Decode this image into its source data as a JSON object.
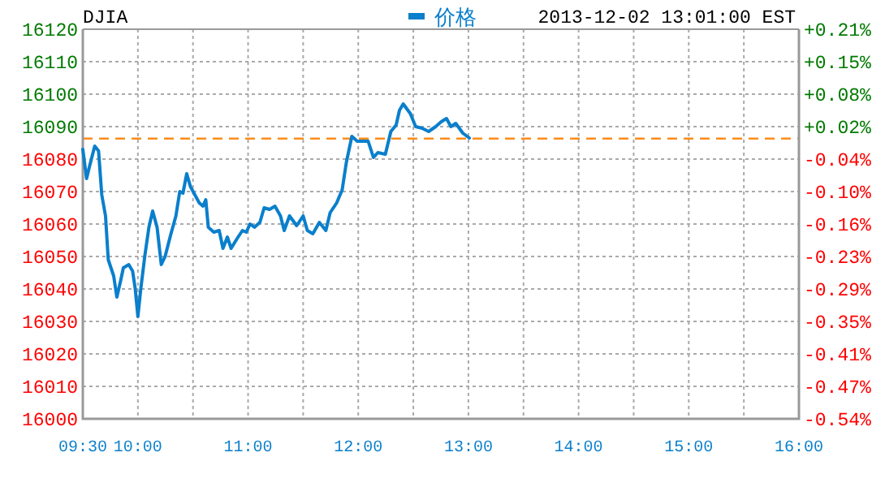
{
  "chart_data": {
    "type": "line",
    "title": "DJIA",
    "subtitle": "2013-12-02 13:01:00 EST",
    "xlim": [
      9.5,
      16
    ],
    "xticks": [
      {
        "value": 9.5,
        "label": "09:30"
      },
      {
        "value": 10,
        "label": "10:00"
      },
      {
        "value": 10.5,
        "label": null
      },
      {
        "value": 11,
        "label": "11:00"
      },
      {
        "value": 11.5,
        "label": null
      },
      {
        "value": 12,
        "label": "12:00"
      },
      {
        "value": 12.5,
        "label": null
      },
      {
        "value": 13,
        "label": "13:00"
      },
      {
        "value": 13.5,
        "label": null
      },
      {
        "value": 14,
        "label": "14:00"
      },
      {
        "value": 14.5,
        "label": null
      },
      {
        "value": 15,
        "label": "15:00"
      },
      {
        "value": 15.5,
        "label": null
      },
      {
        "value": 16,
        "label": "16:00"
      }
    ],
    "ylim": [
      16000,
      16120
    ],
    "yticks": [
      16000,
      16010,
      16020,
      16030,
      16040,
      16050,
      16060,
      16070,
      16080,
      16090,
      16100,
      16110,
      16120
    ],
    "y2lim": [
      -0.536,
      0.209
    ],
    "y2ticks": [
      {
        "value": -0.536,
        "label": "-0.54%"
      },
      {
        "value": -0.474,
        "label": "-0.47%"
      },
      {
        "value": -0.412,
        "label": "-0.41%"
      },
      {
        "value": -0.35,
        "label": "-0.35%"
      },
      {
        "value": -0.288,
        "label": "-0.29%"
      },
      {
        "value": -0.226,
        "label": "-0.23%"
      },
      {
        "value": -0.164,
        "label": "-0.16%"
      },
      {
        "value": -0.101,
        "label": "-0.10%"
      },
      {
        "value": -0.039,
        "label": "-0.04%"
      },
      {
        "value": 0.023,
        "label": "+0.02%"
      },
      {
        "value": 0.085,
        "label": "+0.08%"
      },
      {
        "value": 0.147,
        "label": "+0.15%"
      },
      {
        "value": 0.209,
        "label": "+0.21%"
      }
    ],
    "grid": true,
    "legend": "top",
    "ref_lines": [
      {
        "axis": "y",
        "value": 16086.3,
        "color": "#ff8c1a",
        "line_style": "dashed"
      }
    ],
    "series": [
      {
        "name": "价格",
        "color": "#0a7fcc",
        "x": [
          9.5,
          9.534,
          9.559,
          9.608,
          9.643,
          9.672,
          9.706,
          9.731,
          9.78,
          9.809,
          9.843,
          9.868,
          9.917,
          9.952,
          9.976,
          10.0,
          10.026,
          10.064,
          10.1,
          10.134,
          10.174,
          10.212,
          10.247,
          10.296,
          10.345,
          10.38,
          10.409,
          10.443,
          10.477,
          10.517,
          10.557,
          10.591,
          10.616,
          10.639,
          10.689,
          10.738,
          10.772,
          10.812,
          10.846,
          10.9,
          10.949,
          10.984,
          11.018,
          11.058,
          11.107,
          11.146,
          11.195,
          11.244,
          11.294,
          11.328,
          11.376,
          11.441,
          11.5,
          11.538,
          11.588,
          11.647,
          11.706,
          11.745,
          11.804,
          11.854,
          11.892,
          11.942,
          11.991,
          12.09,
          12.138,
          12.178,
          12.246,
          12.296,
          12.344,
          12.374,
          12.408,
          12.473,
          12.521,
          12.58,
          12.639,
          12.703,
          12.753,
          12.801,
          12.841,
          12.885,
          12.949,
          13.008
        ],
        "values": [
          16083,
          16074,
          16077.5,
          16084,
          16082.5,
          16069,
          16062.5,
          16049,
          16044,
          16037.5,
          16042.5,
          16046.5,
          16047.5,
          16045.5,
          16040,
          16031.5,
          16040,
          16050.5,
          16059,
          16064,
          16059,
          16047.5,
          16050,
          16056.5,
          16062.5,
          16070,
          16069.5,
          16075.5,
          16071.5,
          16069,
          16066.5,
          16065.5,
          16067.5,
          16059,
          16057.5,
          16058,
          16052.5,
          16056,
          16052.5,
          16055.5,
          16058,
          16057.5,
          16060,
          16059,
          16060.5,
          16065,
          16064.5,
          16065.5,
          16062.5,
          16058,
          16062.5,
          16059.5,
          16062.5,
          16058,
          16057,
          16060.5,
          16058,
          16063.5,
          16066.5,
          16070.5,
          16079,
          16087,
          16085.5,
          16085.5,
          16080.5,
          16082,
          16081.5,
          16088.5,
          16090.5,
          16095,
          16097,
          16094,
          16090,
          16089.5,
          16088.5,
          16090,
          16091.5,
          16092.5,
          16090,
          16091,
          16088,
          16086.5
        ]
      }
    ]
  }
}
